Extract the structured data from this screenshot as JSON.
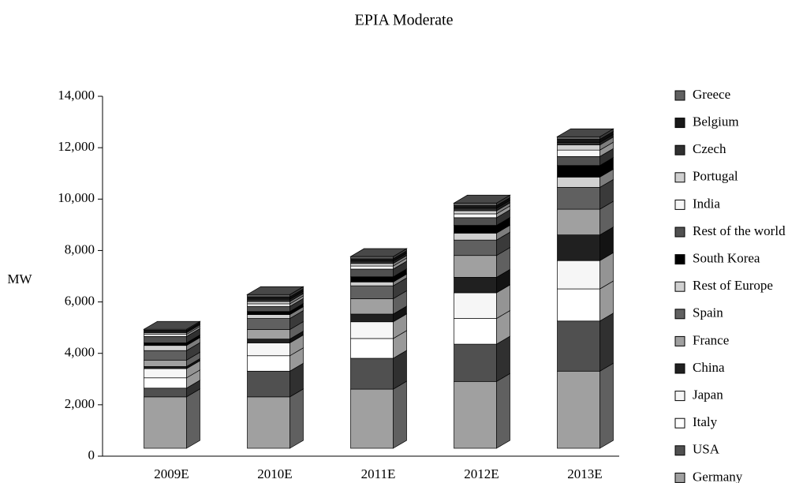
{
  "chart_data": {
    "type": "bar",
    "stacked": true,
    "three_d": true,
    "title": "EPIA Moderate",
    "y_label": "MW",
    "categories": [
      "2009E",
      "2010E",
      "2011E",
      "2012E",
      "2013E"
    ],
    "ylim": [
      0,
      14000
    ],
    "yticks": [
      0,
      {
        "value": 2000,
        "label": "2,000"
      },
      {
        "value": 4000,
        "label": "4,000"
      },
      {
        "value": 6000,
        "label": "6,000"
      },
      {
        "value": 8000,
        "label": "8,000"
      },
      {
        "value": 10000,
        "label": "10,000"
      },
      {
        "value": 12000,
        "label": "12,000"
      },
      {
        "value": 14000,
        "label": "14,000"
      }
    ],
    "series": [
      {
        "name": "Germany",
        "color": "#a0a0a0",
        "values": [
          2000,
          2000,
          2300,
          2600,
          3000
        ]
      },
      {
        "name": "USA",
        "color": "#505050",
        "values": [
          340,
          1000,
          1200,
          1450,
          1950
        ]
      },
      {
        "name": "Italy",
        "color": "#ffffff",
        "values": [
          400,
          600,
          770,
          1000,
          1250
        ]
      },
      {
        "name": "Japan",
        "color": "#f6f6f6",
        "values": [
          360,
          500,
          650,
          1000,
          1100
        ]
      },
      {
        "name": "China",
        "color": "#202020",
        "values": [
          80,
          150,
          300,
          600,
          1000
        ]
      },
      {
        "name": "France",
        "color": "#a0a0a0",
        "values": [
          250,
          370,
          600,
          850,
          1000
        ]
      },
      {
        "name": "Spain",
        "color": "#606060",
        "values": [
          370,
          430,
          500,
          600,
          850
        ]
      },
      {
        "name": "Rest of Europe",
        "color": "#d0d0d0",
        "values": [
          200,
          150,
          150,
          270,
          400
        ]
      },
      {
        "name": "South Korea",
        "color": "#000000",
        "values": [
          100,
          120,
          200,
          300,
          450
        ]
      },
      {
        "name": "Rest of the world",
        "color": "#505050",
        "values": [
          250,
          200,
          300,
          300,
          350
        ]
      },
      {
        "name": "India",
        "color": "#f6f6f6",
        "values": [
          80,
          100,
          120,
          150,
          250
        ]
      },
      {
        "name": "Portugal",
        "color": "#d0d0d0",
        "values": [
          60,
          90,
          100,
          120,
          200
        ]
      },
      {
        "name": "Czech",
        "color": "#303030",
        "values": [
          50,
          90,
          90,
          100,
          100
        ]
      },
      {
        "name": "Belgium",
        "color": "#181818",
        "values": [
          50,
          90,
          90,
          100,
          120
        ]
      },
      {
        "name": "Greece",
        "color": "#606060",
        "values": [
          40,
          90,
          90,
          100,
          100
        ]
      }
    ]
  }
}
